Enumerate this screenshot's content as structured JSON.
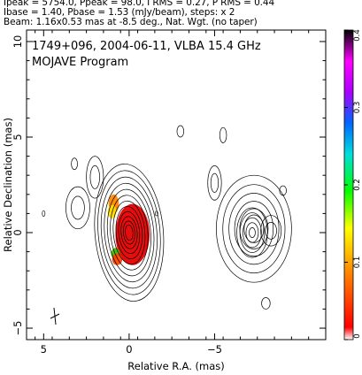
{
  "header": {
    "line1": "Ipeak = 5754.0, Ppeak = 98.0, I RMS = 0.27, P RMS = 0.44",
    "line2": "Ibase = 1.40, Pbase = 1.53 (mJy/beam), steps: x 2",
    "line3": "Beam: 1.16x0.53 mas at -8.5 deg., Nat. Wgt. (no taper)"
  },
  "plot": {
    "title_line1": "1749+096, 2004-06-11, VLBA 15.4 GHz",
    "title_line2": "MOJAVE Program"
  },
  "chart_data": {
    "type": "contour",
    "xlabel": "Relative R.A. (mas)",
    "ylabel": "Relative Declination (mas)",
    "xlim": [
      6,
      -11.5
    ],
    "ylim": [
      -5.6,
      10.6
    ],
    "x_ticks": [
      5,
      0,
      -5
    ],
    "y_ticks": [
      -5,
      0,
      5,
      10
    ],
    "colorbar": {
      "range": [
        0,
        0.4
      ],
      "ticks": [
        "0",
        "0.1",
        "0.2",
        "0.3",
        "0.4"
      ],
      "colors": [
        "#ffffff",
        "#ff0000",
        "#ff8800",
        "#ffff00",
        "#00ff00",
        "#00dddd",
        "#0066ff",
        "#aa00ff",
        "#ff00ff",
        "#000000"
      ]
    },
    "core_contours": {
      "center": [
        0.0,
        0.0
      ],
      "levels": 12,
      "max_radius": [
        2.0,
        3.6
      ],
      "angle_deg": -5
    },
    "component_contours": {
      "center": [
        -7.3,
        0.2
      ],
      "levels": 6,
      "max_radius": [
        2.2,
        2.8
      ]
    },
    "small_components": [
      {
        "center": [
          2.0,
          2.9
        ],
        "radii": [
          0.5,
          1.1
        ]
      },
      {
        "center": [
          3.0,
          1.3
        ],
        "radii": [
          0.7,
          1.1
        ]
      },
      {
        "center": [
          -5.0,
          2.6
        ],
        "radii": [
          0.4,
          0.9
        ]
      },
      {
        "center": [
          -8.3,
          0.1
        ],
        "radii": [
          0.6,
          0.8
        ]
      },
      {
        "center": [
          -8.0,
          -3.7
        ],
        "radii": [
          0.25,
          0.3
        ]
      },
      {
        "center": [
          -5.5,
          5.1
        ],
        "radii": [
          0.2,
          0.4
        ]
      },
      {
        "center": [
          -3.0,
          5.3
        ],
        "radii": [
          0.2,
          0.3
        ]
      },
      {
        "center": [
          3.2,
          3.6
        ],
        "radii": [
          0.18,
          0.3
        ]
      },
      {
        "center": [
          5.0,
          1.0
        ],
        "radii": [
          0.08,
          0.15
        ]
      },
      {
        "center": [
          -1.6,
          1.0
        ],
        "radii": [
          0.08,
          0.12
        ]
      },
      {
        "center": [
          -9.0,
          2.2
        ],
        "radii": [
          0.2,
          0.25
        ]
      }
    ],
    "polarization_blobs": [
      {
        "center": [
          -0.2,
          -0.1
        ],
        "radii": [
          1.0,
          1.6
        ],
        "color": "#e60000"
      },
      {
        "center": [
          0.9,
          1.5
        ],
        "radii": [
          0.3,
          0.5
        ],
        "color": "#ff8800"
      },
      {
        "center": [
          1.0,
          1.1
        ],
        "radii": [
          0.25,
          0.35
        ],
        "color": "#ffdd00"
      },
      {
        "center": [
          0.8,
          -1.1
        ],
        "radii": [
          0.25,
          0.3
        ],
        "color": "#44bb00"
      },
      {
        "center": [
          0.7,
          -1.4
        ],
        "radii": [
          0.3,
          0.3
        ],
        "color": "#ff4400"
      }
    ]
  }
}
